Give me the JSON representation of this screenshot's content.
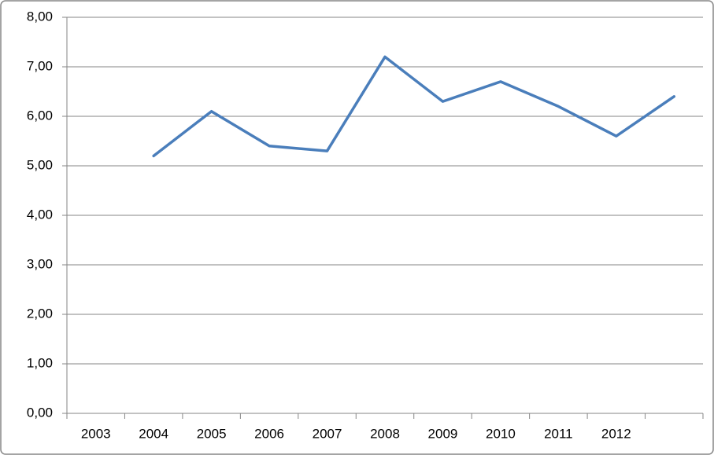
{
  "chart_data": {
    "type": "line",
    "categories": [
      "2003",
      "2004",
      "2005",
      "2006",
      "2007",
      "2008",
      "2009",
      "2010",
      "2011",
      "2012",
      null
    ],
    "series": [
      {
        "name": null,
        "color": "#4a7ebb",
        "values": [
          null,
          5.2,
          6.1,
          5.4,
          5.3,
          7.2,
          6.3,
          6.7,
          6.2,
          5.6,
          6.4
        ]
      }
    ],
    "ylim": [
      0,
      8
    ],
    "yticks": [
      {
        "value": 0,
        "label": "0,00"
      },
      {
        "value": 1,
        "label": "1,00"
      },
      {
        "value": 2,
        "label": "2,00"
      },
      {
        "value": 3,
        "label": "3,00"
      },
      {
        "value": 4,
        "label": "4,00"
      },
      {
        "value": 5,
        "label": "5,00"
      },
      {
        "value": 6,
        "label": "6,00"
      },
      {
        "value": 7,
        "label": "7,00"
      },
      {
        "value": 8,
        "label": "8,00"
      }
    ],
    "grid": true
  }
}
